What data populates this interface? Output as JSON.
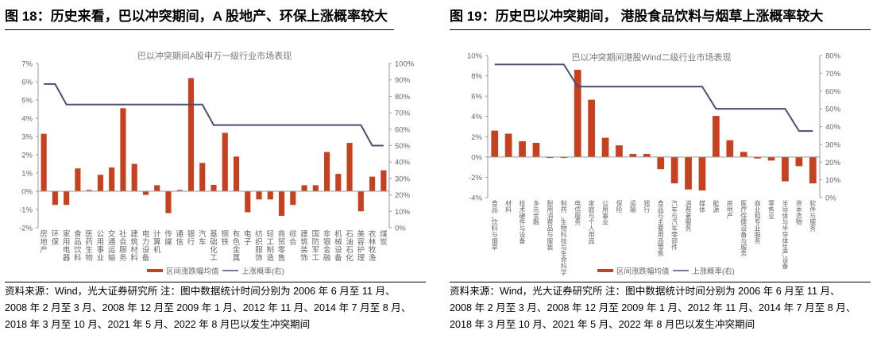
{
  "left": {
    "title": "图 18：历史来看，巴以冲突期间，A 股地产、环保上涨概率较大",
    "footer": [
      "资料来源：Wind，光大证券研究所  注：图中数据统计时间分别为 2006 年 6 月至 11 月、",
      "2008 年 2 月至 3 月、2008 年 12 月至 2009 年 1 月、2012 年 11 月、2014 年 7 月至 8 月、",
      "2018 年 3 月至 10 月、2021 年 5 月、2022 年 8 月巴以发生冲突期间"
    ]
  },
  "right": {
    "title": "图 19：历史巴以冲突期间，  港股食品饮料与烟草上涨概率较大",
    "footer": [
      "资料来源：Wind，光大证券研究所  注：图中数据统计时间分别为 2006 年 6 月至 11 月、",
      "2008 年 2 月至 3 月、2008 年 12 月至 2009 年 1 月、2012 年 11 月、2014 年 7 月至 8 月、",
      "2018 年 3 月至 10 月、2021 年 5 月、2022 年 8 月巴以发生冲突期间"
    ]
  },
  "colors": {
    "bar": "#C8411E",
    "line": "#4B4D73",
    "axis": "#999999",
    "text": "#666666"
  },
  "chart_data": [
    {
      "type": "bar+line",
      "title": "巴以冲突期间A股申万一级行业市场表现",
      "categories": [
        "房地产",
        "环保",
        "家用电器",
        "食品饮料",
        "医药生物",
        "公用事业",
        "交通运输",
        "社会服务",
        "建筑材料",
        "电力设备",
        "计算机",
        "传媒",
        "通信",
        "银行",
        "汽车",
        "基础化工",
        "钢铁",
        "有色金属",
        "电子",
        "纺织服饰",
        "轻工制造",
        "商贸零售",
        "综合",
        "建筑装饰",
        "国防军工",
        "非银金融",
        "机械设备",
        "石油石化",
        "美容护理",
        "农林牧渔",
        "煤炭"
      ],
      "series": [
        {
          "name": "区间涨跌幅均值",
          "axis": "left",
          "type": "bar",
          "values": [
            3.15,
            -0.75,
            -0.75,
            1.25,
            0.07,
            0.9,
            1.3,
            4.55,
            1.5,
            -0.2,
            0.33,
            -1.2,
            0.07,
            6.2,
            1.55,
            0.35,
            3.2,
            1.9,
            -1.15,
            -0.45,
            -0.45,
            -1.35,
            -0.75,
            0.33,
            0.33,
            2.15,
            0.95,
            2.65,
            -1.1,
            0.8,
            1.15
          ]
        },
        {
          "name": "上涨概率(右)",
          "axis": "right",
          "type": "line",
          "values": [
            87.5,
            87.5,
            75,
            75,
            75,
            75,
            75,
            75,
            75,
            75,
            75,
            75,
            75,
            75,
            75,
            62.5,
            62.5,
            62.5,
            62.5,
            62.5,
            62.5,
            62.5,
            62.5,
            62.5,
            62.5,
            62.5,
            62.5,
            62.5,
            62.5,
            50,
            50
          ]
        }
      ],
      "ylim_left": [
        -2,
        7
      ],
      "yticks_left": [
        "-2%",
        "-1%",
        "0%",
        "1%",
        "2%",
        "3%",
        "4%",
        "5%",
        "6%",
        "7%"
      ],
      "ylim_right": [
        0,
        100
      ],
      "yticks_right": [
        "0%",
        "10%",
        "20%",
        "30%",
        "40%",
        "50%",
        "60%",
        "70%",
        "80%",
        "90%",
        "100%"
      ],
      "legend": "bottom",
      "grid": false
    },
    {
      "type": "bar+line",
      "title": "巴以冲突期间港股Wind二级行业市场表现",
      "categories": [
        "食品、饮料与烟草",
        "材料",
        "技术硬件与设备",
        "多元金融",
        "耐用消费品与服装",
        "制药、生物科技与生命科学",
        "电信服务",
        "家庭与个人用品",
        "公用事业",
        "保险",
        "运输",
        "银行",
        "食品与主要用品零售",
        "汽车与汽车零部件",
        "消费者服务",
        "媒体",
        "能源",
        "房地产",
        "医疗保健设备与服务",
        "商业和专业服务",
        "零售业",
        "半导体与半导体生产设备",
        "资本货物",
        "软件与服务"
      ],
      "series": [
        {
          "name": "区间涨跌幅均值",
          "axis": "left",
          "type": "bar",
          "values": [
            2.6,
            2.3,
            1.55,
            1.4,
            -0.1,
            -0.1,
            8.6,
            5.65,
            1.9,
            1.15,
            0.3,
            0.3,
            -1.2,
            -2.6,
            -3.2,
            -3.3,
            4.05,
            1.65,
            0.5,
            -0.15,
            -0.35,
            -2.4,
            -0.9,
            -2.6
          ]
        },
        {
          "name": "上涨概率(右)",
          "axis": "right",
          "type": "line",
          "values": [
            75,
            75,
            75,
            75,
            75,
            75,
            62.5,
            62.5,
            62.5,
            62.5,
            62.5,
            62.5,
            62.5,
            62.5,
            62.5,
            62.5,
            50,
            50,
            50,
            50,
            50,
            50,
            37.5,
            37.5
          ]
        }
      ],
      "ylim_left": [
        -4,
        10
      ],
      "yticks_left": [
        "-4%",
        "-2%",
        "0%",
        "2%",
        "4%",
        "6%",
        "8%",
        "10%"
      ],
      "ylim_right": [
        0,
        80
      ],
      "yticks_right": [
        "0%",
        "10%",
        "20%",
        "30%",
        "40%",
        "50%",
        "60%",
        "70%",
        "80%"
      ],
      "legend": "bottom",
      "grid": false
    }
  ]
}
